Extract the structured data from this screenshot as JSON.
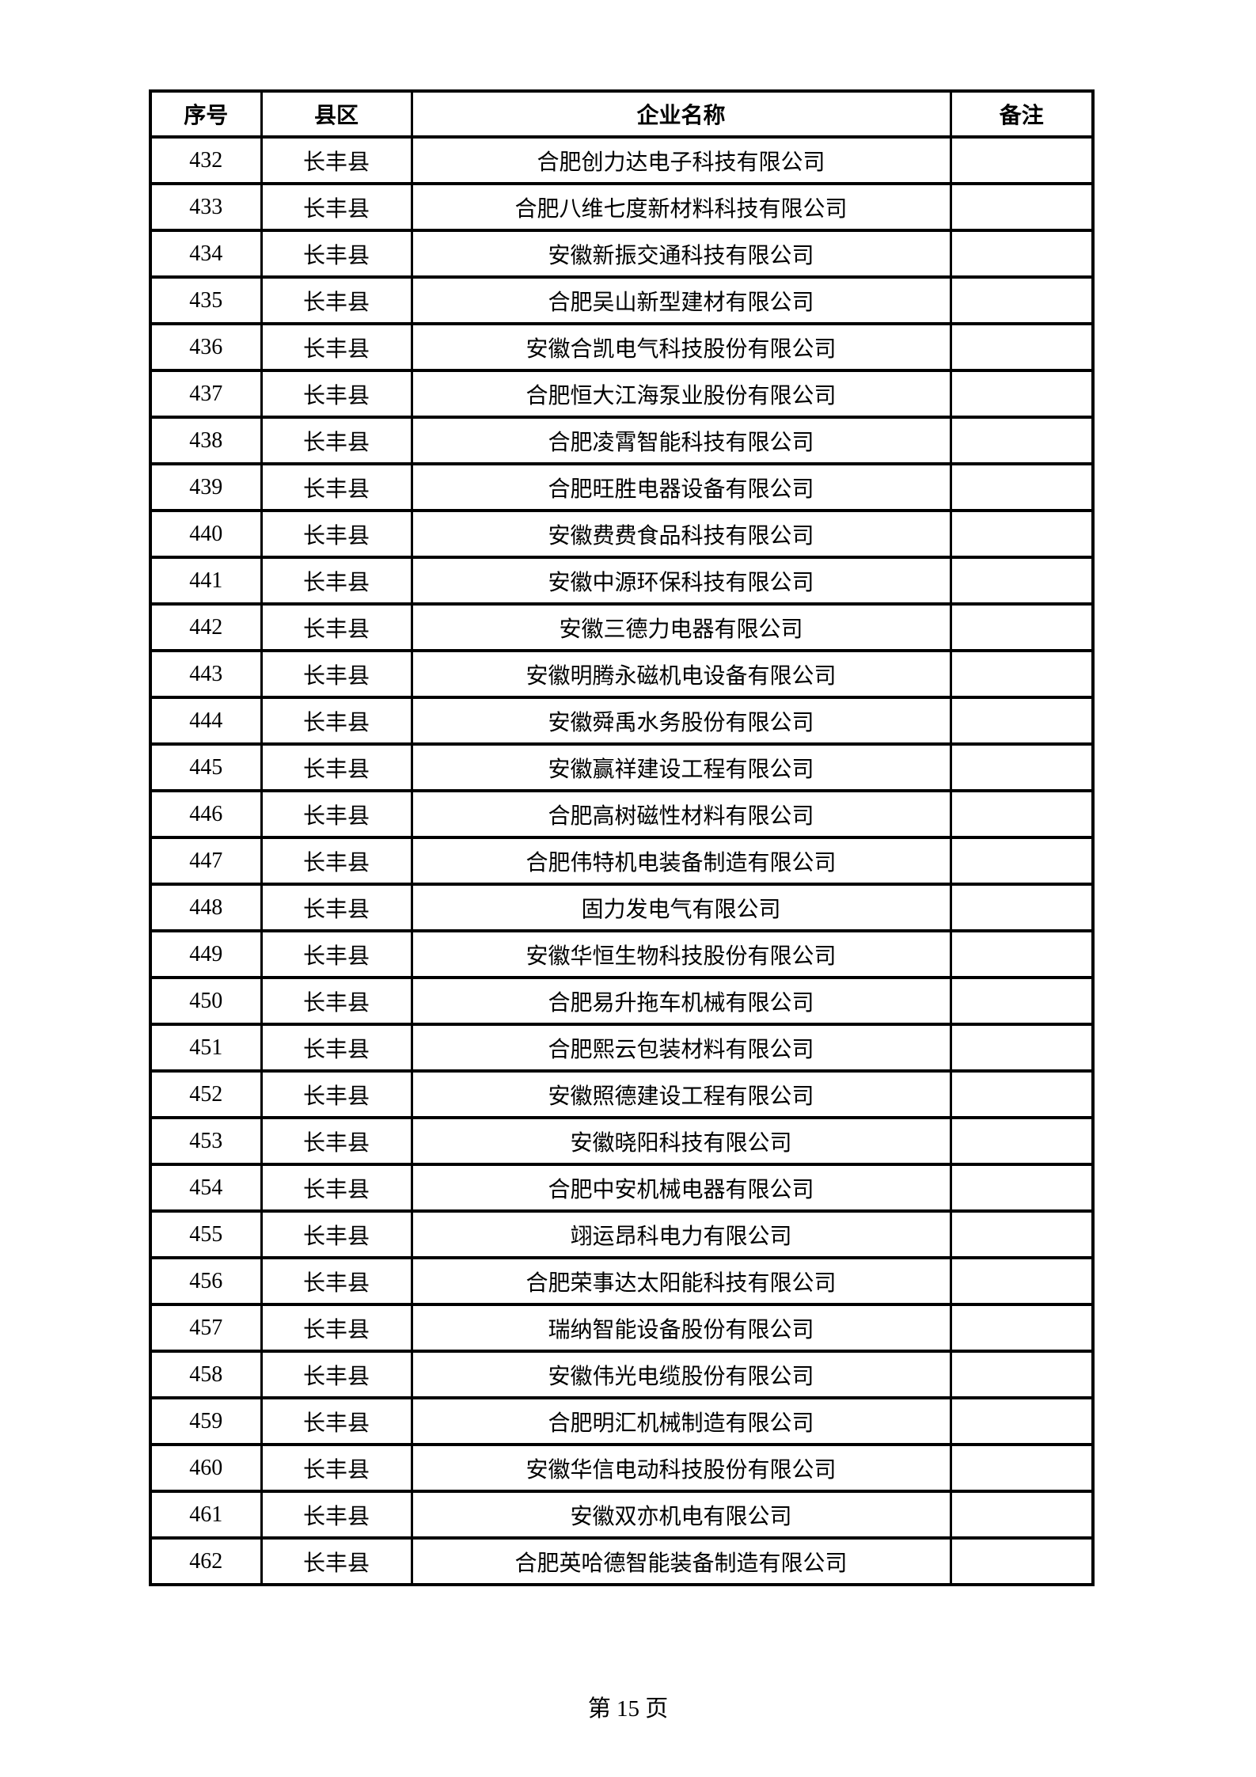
{
  "footer": {
    "page_label": "第 15 页"
  },
  "table": {
    "headers": [
      "序号",
      "县区",
      "企业名称",
      "备注"
    ],
    "rows": [
      {
        "index": "432",
        "district": "长丰县",
        "company": "合肥创力达电子科技有限公司",
        "remark": ""
      },
      {
        "index": "433",
        "district": "长丰县",
        "company": "合肥八维七度新材料科技有限公司",
        "remark": ""
      },
      {
        "index": "434",
        "district": "长丰县",
        "company": "安徽新振交通科技有限公司",
        "remark": ""
      },
      {
        "index": "435",
        "district": "长丰县",
        "company": "合肥吴山新型建材有限公司",
        "remark": ""
      },
      {
        "index": "436",
        "district": "长丰县",
        "company": "安徽合凯电气科技股份有限公司",
        "remark": ""
      },
      {
        "index": "437",
        "district": "长丰县",
        "company": "合肥恒大江海泵业股份有限公司",
        "remark": ""
      },
      {
        "index": "438",
        "district": "长丰县",
        "company": "合肥凌霄智能科技有限公司",
        "remark": ""
      },
      {
        "index": "439",
        "district": "长丰县",
        "company": "合肥旺胜电器设备有限公司",
        "remark": ""
      },
      {
        "index": "440",
        "district": "长丰县",
        "company": "安徽费费食品科技有限公司",
        "remark": ""
      },
      {
        "index": "441",
        "district": "长丰县",
        "company": "安徽中源环保科技有限公司",
        "remark": ""
      },
      {
        "index": "442",
        "district": "长丰县",
        "company": "安徽三德力电器有限公司",
        "remark": ""
      },
      {
        "index": "443",
        "district": "长丰县",
        "company": "安徽明腾永磁机电设备有限公司",
        "remark": ""
      },
      {
        "index": "444",
        "district": "长丰县",
        "company": "安徽舜禹水务股份有限公司",
        "remark": ""
      },
      {
        "index": "445",
        "district": "长丰县",
        "company": "安徽赢祥建设工程有限公司",
        "remark": ""
      },
      {
        "index": "446",
        "district": "长丰县",
        "company": "合肥高树磁性材料有限公司",
        "remark": ""
      },
      {
        "index": "447",
        "district": "长丰县",
        "company": "合肥伟特机电装备制造有限公司",
        "remark": ""
      },
      {
        "index": "448",
        "district": "长丰县",
        "company": "固力发电气有限公司",
        "remark": ""
      },
      {
        "index": "449",
        "district": "长丰县",
        "company": "安徽华恒生物科技股份有限公司",
        "remark": ""
      },
      {
        "index": "450",
        "district": "长丰县",
        "company": "合肥易升拖车机械有限公司",
        "remark": ""
      },
      {
        "index": "451",
        "district": "长丰县",
        "company": "合肥熙云包装材料有限公司",
        "remark": ""
      },
      {
        "index": "452",
        "district": "长丰县",
        "company": "安徽照德建设工程有限公司",
        "remark": ""
      },
      {
        "index": "453",
        "district": "长丰县",
        "company": "安徽晓阳科技有限公司",
        "remark": ""
      },
      {
        "index": "454",
        "district": "长丰县",
        "company": "合肥中安机械电器有限公司",
        "remark": ""
      },
      {
        "index": "455",
        "district": "长丰县",
        "company": "翊运昂科电力有限公司",
        "remark": ""
      },
      {
        "index": "456",
        "district": "长丰县",
        "company": "合肥荣事达太阳能科技有限公司",
        "remark": ""
      },
      {
        "index": "457",
        "district": "长丰县",
        "company": "瑞纳智能设备股份有限公司",
        "remark": ""
      },
      {
        "index": "458",
        "district": "长丰县",
        "company": "安徽伟光电缆股份有限公司",
        "remark": ""
      },
      {
        "index": "459",
        "district": "长丰县",
        "company": "合肥明汇机械制造有限公司",
        "remark": ""
      },
      {
        "index": "460",
        "district": "长丰县",
        "company": "安徽华信电动科技股份有限公司",
        "remark": ""
      },
      {
        "index": "461",
        "district": "长丰县",
        "company": "安徽双亦机电有限公司",
        "remark": ""
      },
      {
        "index": "462",
        "district": "长丰县",
        "company": "合肥英哈德智能装备制造有限公司",
        "remark": ""
      }
    ]
  }
}
